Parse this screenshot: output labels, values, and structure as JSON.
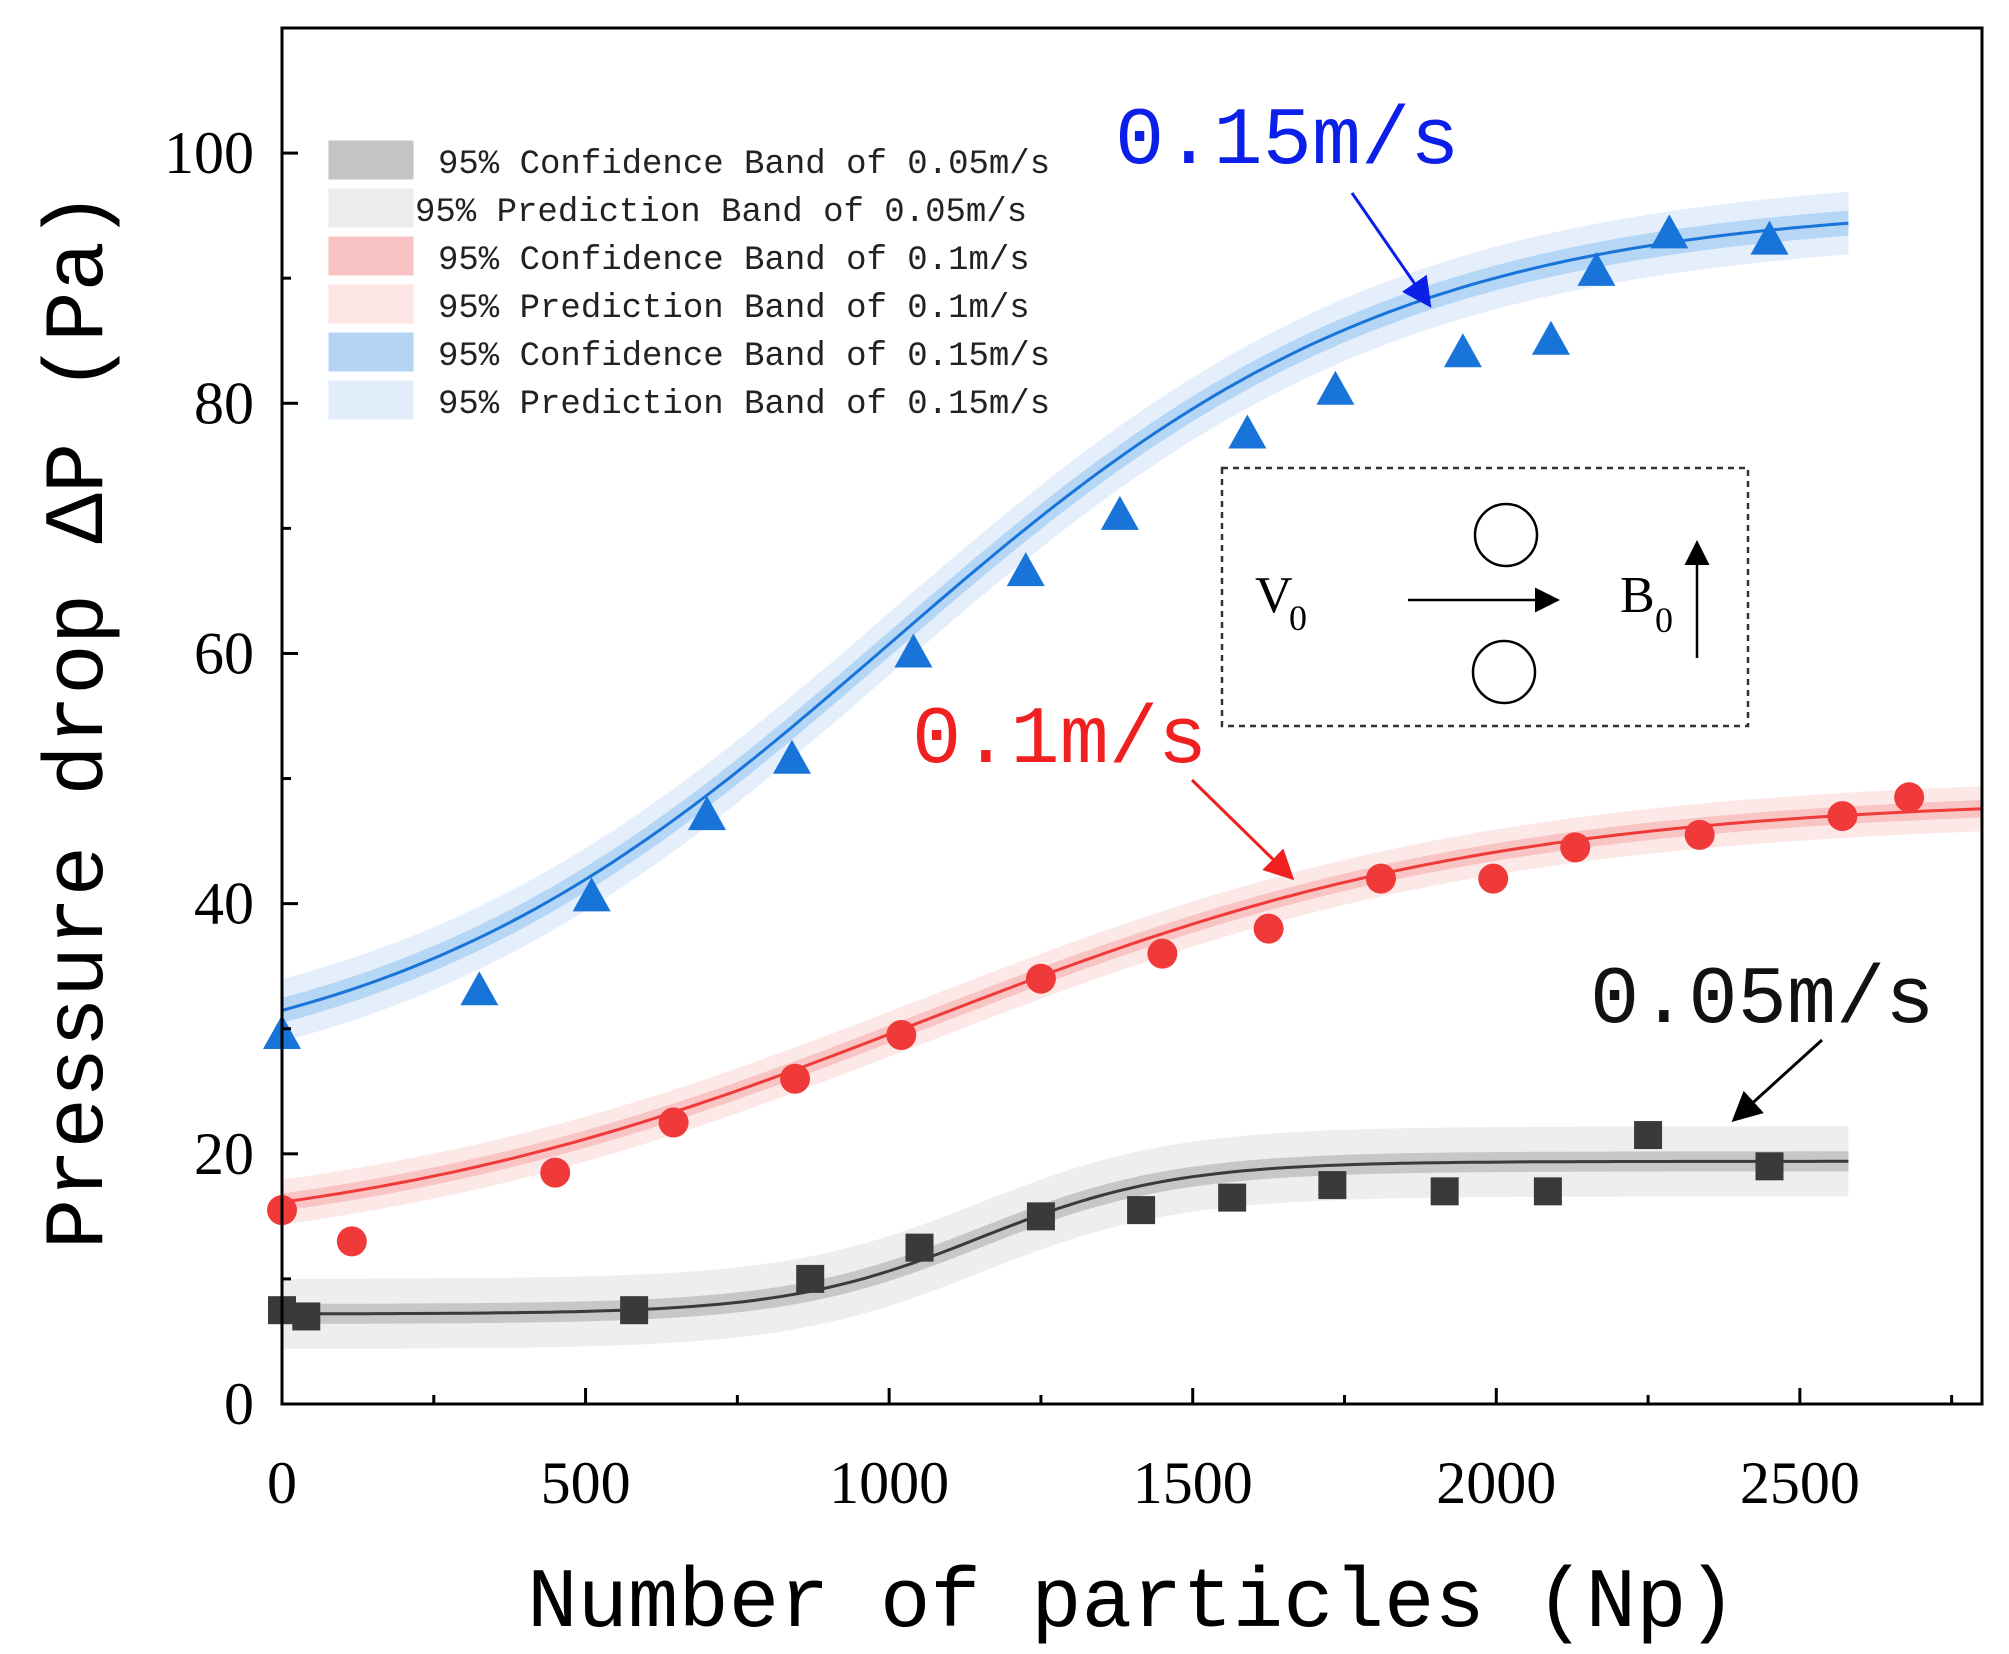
{
  "chart_data": {
    "type": "scatter",
    "title": "",
    "xlabel": "Number of particles (Np)",
    "ylabel": "Pressure drop ΔP (Pa)",
    "xlim": [
      0,
      2800
    ],
    "ylim": [
      0,
      110
    ],
    "xticks": [
      0,
      500,
      1000,
      1500,
      2000,
      2500
    ],
    "yticks": [
      0,
      20,
      40,
      60,
      80,
      100
    ],
    "grid": false,
    "legend_position": "top-left",
    "legend": [
      {
        "label": "95% Confidence Band of 0.05m/s",
        "color": "#c4c4c4"
      },
      {
        "label": "95% Prediction Band of 0.05m/s",
        "color": "#ececec"
      },
      {
        "label": "95% Confidence Band of 0.1m/s",
        "color": "#f9c2c2"
      },
      {
        "label": "95% Prediction Band of 0.1m/s",
        "color": "#fde6e6"
      },
      {
        "label": "95% Confidence Band of 0.15m/s",
        "color": "#b3d4f5"
      },
      {
        "label": "95% Prediction Band of 0.15m/s",
        "color": "#e1edfb"
      }
    ],
    "series": [
      {
        "name": "0.15m/s",
        "marker": "triangle",
        "color": "#1874d8",
        "x": [
          0,
          325,
          510,
          700,
          840,
          1040,
          1225,
          1380,
          1590,
          1735,
          1945,
          2090,
          2165,
          2285,
          2450
        ],
        "y": [
          29.5,
          33,
          40.5,
          47,
          51.5,
          60,
          66.5,
          71,
          77.5,
          81,
          84,
          85,
          90.5,
          93.5,
          93
        ],
        "fit": {
          "y0": 25.5,
          "A": 70.5,
          "x0": 1000,
          "w": 420,
          "x_end": 2580
        },
        "confidence_half_width": 1.0,
        "prediction_half_width": 2.5
      },
      {
        "name": "0.1m/s",
        "marker": "circle",
        "color": "#f03a3a",
        "x": [
          0,
          115,
          450,
          645,
          845,
          1020,
          1250,
          1450,
          1625,
          1810,
          1995,
          2130,
          2335,
          2570,
          2680
        ],
        "y": [
          15.5,
          13,
          18.5,
          22.5,
          26,
          29.5,
          34,
          36,
          38,
          42,
          42,
          44.5,
          45.5,
          47,
          48.5
        ],
        "fit": {
          "y0": 12.5,
          "A": 36.0,
          "x0": 1050,
          "w": 480,
          "x_end": 2800
        },
        "confidence_half_width": 0.7,
        "prediction_half_width": 1.8
      },
      {
        "name": "0.05m/s",
        "marker": "square",
        "color": "#3a3a3a",
        "x": [
          0,
          40,
          580,
          870,
          1050,
          1250,
          1415,
          1565,
          1730,
          1915,
          2085,
          2250,
          2450
        ],
        "y": [
          7.5,
          7,
          7.5,
          10,
          12.5,
          15,
          15.5,
          16.5,
          17.5,
          17,
          17,
          21.5,
          19
        ],
        "fit": {
          "y0": 7.2,
          "A": 12.2,
          "x0": 1150,
          "w": 160,
          "x_end": 2580
        },
        "confidence_half_width": 0.8,
        "prediction_half_width": 2.8
      }
    ],
    "annotations": [
      {
        "text": "0.15m/s",
        "color": "#0b1fe8"
      },
      {
        "text": "0.1m/s",
        "color": "#f02020"
      },
      {
        "text": "0.05m/s",
        "color": "#111111"
      }
    ],
    "inset": {
      "velocity_label": "V",
      "velocity_sub": "0",
      "field_label": "B",
      "field_sub": "0"
    }
  }
}
